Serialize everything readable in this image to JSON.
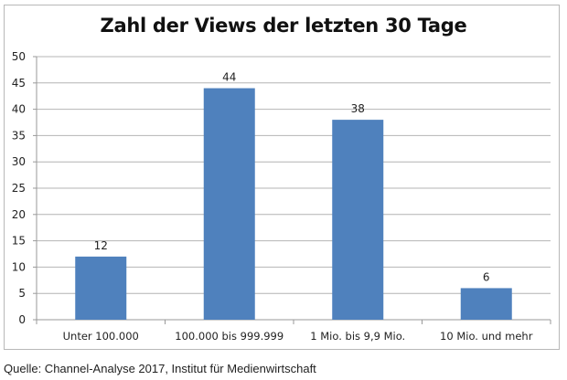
{
  "chart_data": {
    "type": "bar",
    "title": "Zahl der Views der letzten 30 Tage",
    "categories": [
      "Unter 100.000",
      "100.000 bis 999.999",
      "1 Mio. bis 9,9 Mio.",
      "10 Mio. und mehr"
    ],
    "values": [
      12,
      44,
      38,
      6
    ],
    "data_labels": [
      "12",
      "44",
      "38",
      "6"
    ],
    "xlabel": "",
    "ylabel": "",
    "ylim": [
      0,
      50
    ],
    "yticks": [
      0,
      5,
      10,
      15,
      20,
      25,
      30,
      35,
      40,
      45,
      50
    ],
    "grid": true,
    "legend": "none",
    "bar_color": "#4f81bd"
  },
  "source": "Quelle: Channel-Analyse 2017, Institut für Medienwirtschaft"
}
